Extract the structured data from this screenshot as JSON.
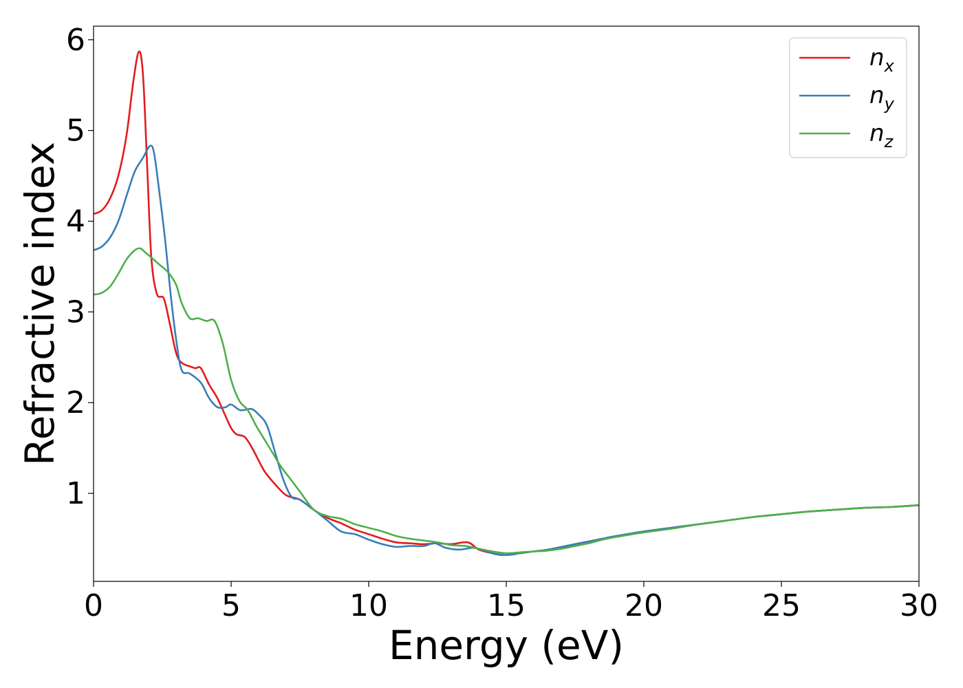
{
  "chart_data": {
    "type": "line",
    "xlabel": "Energy (eV)",
    "ylabel": "Refractive index",
    "xlim": [
      0,
      30
    ],
    "ylim": [
      0.03,
      6.15
    ],
    "xticks": [
      0,
      5,
      10,
      15,
      20,
      25,
      30
    ],
    "xtick_labels": [
      "0",
      "5",
      "10",
      "15",
      "20",
      "25",
      "30"
    ],
    "yticks": [
      1,
      2,
      3,
      4,
      5,
      6
    ],
    "ytick_labels": [
      "1",
      "2",
      "3",
      "4",
      "5",
      "6"
    ],
    "grid": false,
    "legend_position": "top-right",
    "series": [
      {
        "name": "n",
        "subscript": "x",
        "color": "#e41a1c",
        "points": [
          [
            0,
            4.08
          ],
          [
            0.3,
            4.12
          ],
          [
            0.6,
            4.25
          ],
          [
            0.9,
            4.5
          ],
          [
            1.2,
            4.95
          ],
          [
            1.45,
            5.55
          ],
          [
            1.65,
            5.87
          ],
          [
            1.8,
            5.6
          ],
          [
            1.95,
            4.6
          ],
          [
            2.1,
            3.6
          ],
          [
            2.3,
            3.2
          ],
          [
            2.55,
            3.15
          ],
          [
            2.75,
            2.9
          ],
          [
            3.0,
            2.55
          ],
          [
            3.2,
            2.44
          ],
          [
            3.5,
            2.4
          ],
          [
            3.7,
            2.38
          ],
          [
            3.9,
            2.38
          ],
          [
            4.2,
            2.2
          ],
          [
            4.5,
            2.05
          ],
          [
            4.8,
            1.85
          ],
          [
            5.0,
            1.72
          ],
          [
            5.2,
            1.65
          ],
          [
            5.5,
            1.62
          ],
          [
            5.8,
            1.48
          ],
          [
            6.2,
            1.25
          ],
          [
            6.6,
            1.1
          ],
          [
            7.0,
            0.98
          ],
          [
            7.5,
            0.93
          ],
          [
            8.0,
            0.82
          ],
          [
            8.5,
            0.73
          ],
          [
            9.0,
            0.67
          ],
          [
            9.5,
            0.6
          ],
          [
            10.0,
            0.55
          ],
          [
            10.5,
            0.5
          ],
          [
            11.0,
            0.46
          ],
          [
            11.5,
            0.45
          ],
          [
            12.0,
            0.44
          ],
          [
            12.5,
            0.45
          ],
          [
            13.0,
            0.44
          ],
          [
            13.6,
            0.46
          ],
          [
            14.0,
            0.38
          ],
          [
            14.5,
            0.34
          ],
          [
            15.0,
            0.32
          ],
          [
            15.5,
            0.34
          ],
          [
            16.0,
            0.36
          ],
          [
            16.5,
            0.37
          ],
          [
            17.0,
            0.4
          ],
          [
            17.5,
            0.44
          ],
          [
            18.0,
            0.47
          ],
          [
            18.5,
            0.5
          ],
          [
            19.0,
            0.53
          ],
          [
            20.0,
            0.58
          ],
          [
            21.0,
            0.62
          ],
          [
            22.0,
            0.66
          ],
          [
            23.0,
            0.7
          ],
          [
            24.0,
            0.74
          ],
          [
            25.0,
            0.77
          ],
          [
            26.0,
            0.8
          ],
          [
            27.0,
            0.82
          ],
          [
            28.0,
            0.84
          ],
          [
            29.0,
            0.85
          ],
          [
            30.0,
            0.87
          ]
        ]
      },
      {
        "name": "n",
        "subscript": "y",
        "color": "#377eb8",
        "points": [
          [
            0,
            3.68
          ],
          [
            0.3,
            3.72
          ],
          [
            0.6,
            3.82
          ],
          [
            0.9,
            4.0
          ],
          [
            1.2,
            4.28
          ],
          [
            1.5,
            4.55
          ],
          [
            1.8,
            4.7
          ],
          [
            2.05,
            4.83
          ],
          [
            2.2,
            4.75
          ],
          [
            2.4,
            4.3
          ],
          [
            2.6,
            3.8
          ],
          [
            2.8,
            3.2
          ],
          [
            3.0,
            2.7
          ],
          [
            3.2,
            2.36
          ],
          [
            3.5,
            2.32
          ],
          [
            3.9,
            2.22
          ],
          [
            4.2,
            2.05
          ],
          [
            4.5,
            1.95
          ],
          [
            4.8,
            1.95
          ],
          [
            5.0,
            1.98
          ],
          [
            5.3,
            1.92
          ],
          [
            5.5,
            1.92
          ],
          [
            5.75,
            1.93
          ],
          [
            6.0,
            1.87
          ],
          [
            6.3,
            1.75
          ],
          [
            6.6,
            1.45
          ],
          [
            6.9,
            1.15
          ],
          [
            7.2,
            0.96
          ],
          [
            7.5,
            0.93
          ],
          [
            8.0,
            0.82
          ],
          [
            8.5,
            0.7
          ],
          [
            9.0,
            0.58
          ],
          [
            9.5,
            0.55
          ],
          [
            10.0,
            0.49
          ],
          [
            10.5,
            0.44
          ],
          [
            11.0,
            0.41
          ],
          [
            11.5,
            0.42
          ],
          [
            12.0,
            0.42
          ],
          [
            12.4,
            0.45
          ],
          [
            12.8,
            0.4
          ],
          [
            13.3,
            0.38
          ],
          [
            13.8,
            0.4
          ],
          [
            14.2,
            0.37
          ],
          [
            14.6,
            0.33
          ],
          [
            15.0,
            0.32
          ],
          [
            15.5,
            0.34
          ],
          [
            16.0,
            0.36
          ],
          [
            16.5,
            0.38
          ],
          [
            17.0,
            0.41
          ],
          [
            17.5,
            0.44
          ],
          [
            18.0,
            0.47
          ],
          [
            18.5,
            0.5
          ],
          [
            19.0,
            0.53
          ],
          [
            20.0,
            0.58
          ],
          [
            21.0,
            0.62
          ],
          [
            22.0,
            0.66
          ],
          [
            23.0,
            0.7
          ],
          [
            24.0,
            0.74
          ],
          [
            25.0,
            0.77
          ],
          [
            26.0,
            0.8
          ],
          [
            27.0,
            0.82
          ],
          [
            28.0,
            0.84
          ],
          [
            29.0,
            0.85
          ],
          [
            30.0,
            0.87
          ]
        ]
      },
      {
        "name": "n",
        "subscript": "z",
        "color": "#4daf4a",
        "points": [
          [
            0,
            3.19
          ],
          [
            0.3,
            3.21
          ],
          [
            0.6,
            3.28
          ],
          [
            0.9,
            3.42
          ],
          [
            1.2,
            3.58
          ],
          [
            1.5,
            3.68
          ],
          [
            1.7,
            3.7
          ],
          [
            1.9,
            3.65
          ],
          [
            2.1,
            3.6
          ],
          [
            2.4,
            3.52
          ],
          [
            2.7,
            3.44
          ],
          [
            3.0,
            3.3
          ],
          [
            3.2,
            3.1
          ],
          [
            3.5,
            2.93
          ],
          [
            3.8,
            2.93
          ],
          [
            4.1,
            2.9
          ],
          [
            4.4,
            2.9
          ],
          [
            4.7,
            2.65
          ],
          [
            5.0,
            2.25
          ],
          [
            5.3,
            2.02
          ],
          [
            5.6,
            1.92
          ],
          [
            5.9,
            1.75
          ],
          [
            6.2,
            1.6
          ],
          [
            6.5,
            1.45
          ],
          [
            6.8,
            1.3
          ],
          [
            7.1,
            1.18
          ],
          [
            7.5,
            1.02
          ],
          [
            8.0,
            0.82
          ],
          [
            8.5,
            0.75
          ],
          [
            9.0,
            0.72
          ],
          [
            9.5,
            0.66
          ],
          [
            10.0,
            0.62
          ],
          [
            10.5,
            0.58
          ],
          [
            11.0,
            0.53
          ],
          [
            11.5,
            0.5
          ],
          [
            12.0,
            0.48
          ],
          [
            12.5,
            0.46
          ],
          [
            13.0,
            0.43
          ],
          [
            13.5,
            0.42
          ],
          [
            14.0,
            0.39
          ],
          [
            14.5,
            0.36
          ],
          [
            15.0,
            0.34
          ],
          [
            15.5,
            0.35
          ],
          [
            16.0,
            0.36
          ],
          [
            16.5,
            0.37
          ],
          [
            17.0,
            0.39
          ],
          [
            17.5,
            0.42
          ],
          [
            18.0,
            0.45
          ],
          [
            18.5,
            0.49
          ],
          [
            19.0,
            0.52
          ],
          [
            20.0,
            0.57
          ],
          [
            21.0,
            0.61
          ],
          [
            22.0,
            0.66
          ],
          [
            23.0,
            0.7
          ],
          [
            24.0,
            0.74
          ],
          [
            25.0,
            0.77
          ],
          [
            26.0,
            0.8
          ],
          [
            27.0,
            0.82
          ],
          [
            28.0,
            0.84
          ],
          [
            29.0,
            0.85
          ],
          [
            30.0,
            0.87
          ]
        ]
      }
    ]
  }
}
